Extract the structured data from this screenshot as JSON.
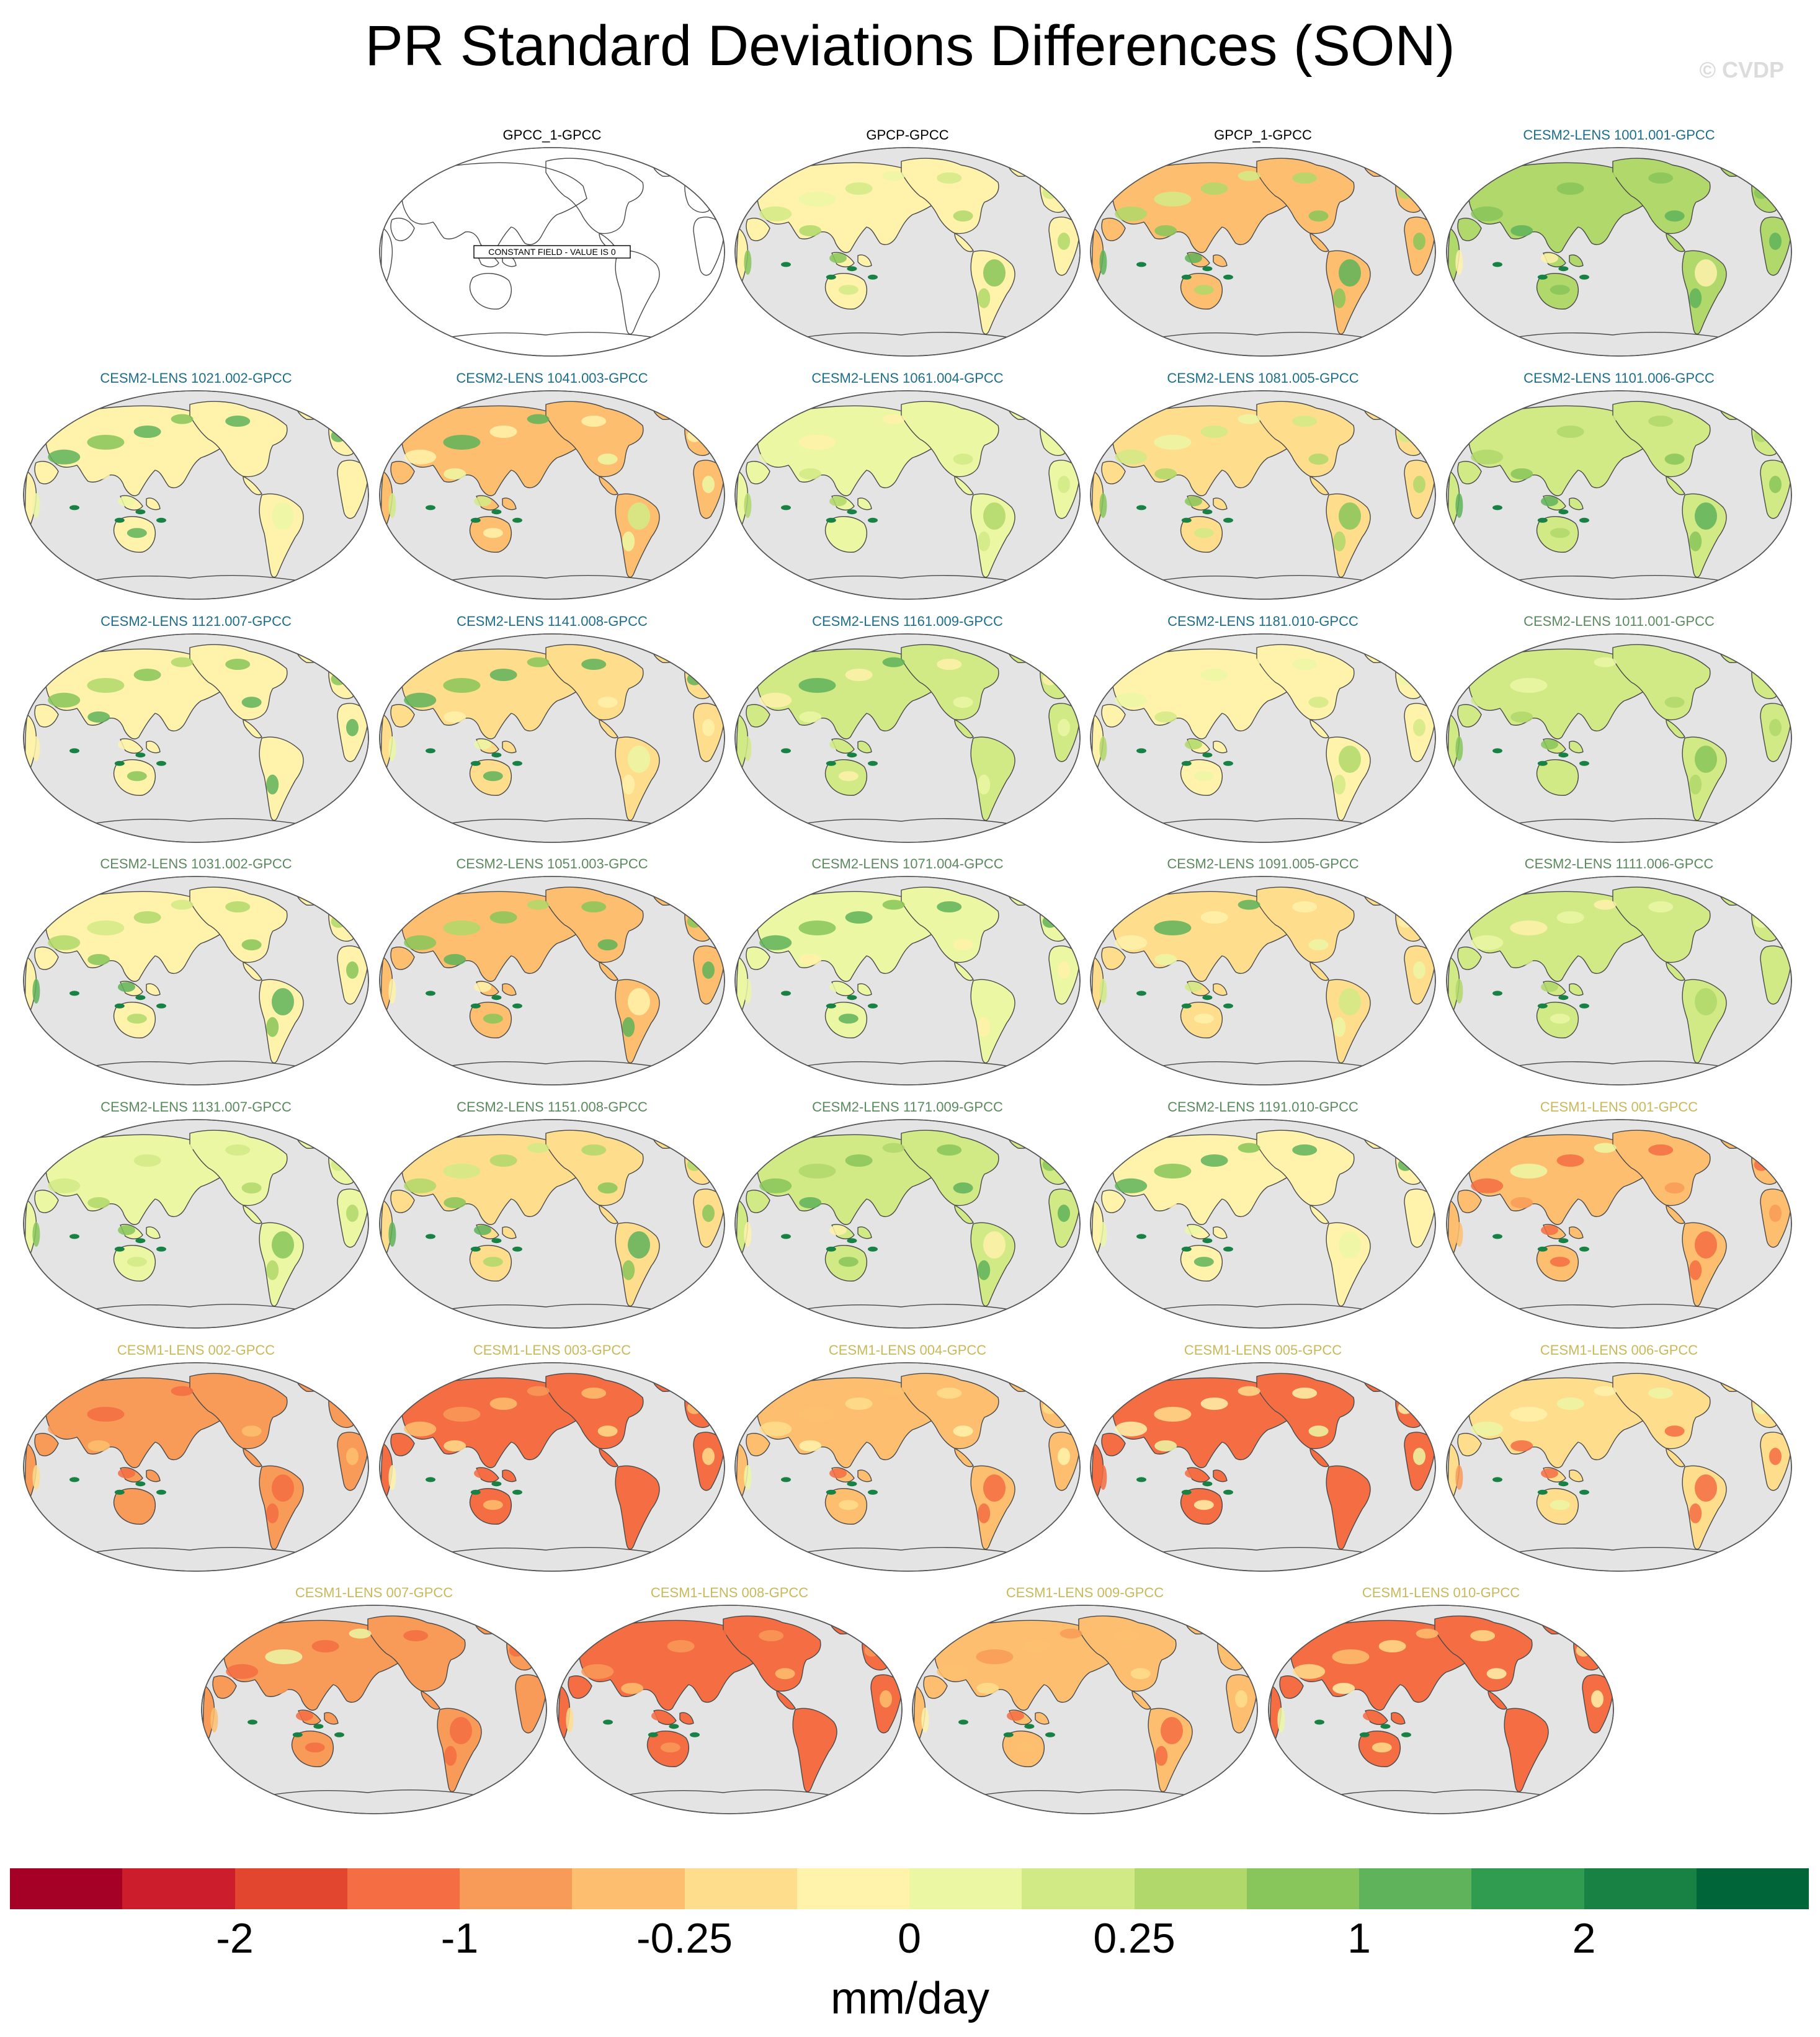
{
  "title": "PR Standard Deviations Differences (SON)",
  "credit": "© CVDP",
  "colors": {
    "ocean": "#e4e4e4",
    "const_fill": "#ffffff",
    "title_obs": "#000000",
    "title_cesm2_a": "#1c6e8c",
    "title_cesm2_b": "#5a8a5e",
    "title_cesm1": "#c9b95a"
  },
  "panels": [
    {
      "label": "GPCC_1-GPCC",
      "group": "obs",
      "constant": true,
      "note": "CONSTANT FIELD - VALUE IS 0"
    },
    {
      "label": "GPCP-GPCC",
      "group": "obs",
      "bias": 0.45
    },
    {
      "label": "GPCP_1-GPCC",
      "group": "obs",
      "bias": 0.45
    },
    {
      "label": "CESM2-LENS 1001.001-GPCC",
      "group": "cesm2_a",
      "bias": 0.1
    },
    {
      "label": "CESM2-LENS 1021.002-GPCC",
      "group": "cesm2_a",
      "bias": 0.2
    },
    {
      "label": "CESM2-LENS 1041.003-GPCC",
      "group": "cesm2_a",
      "bias": 0.2
    },
    {
      "label": "CESM2-LENS 1061.004-GPCC",
      "group": "cesm2_a",
      "bias": 0.2
    },
    {
      "label": "CESM2-LENS 1081.005-GPCC",
      "group": "cesm2_a",
      "bias": 0.2
    },
    {
      "label": "CESM2-LENS 1101.006-GPCC",
      "group": "cesm2_a",
      "bias": 0.2
    },
    {
      "label": "CESM2-LENS 1121.007-GPCC",
      "group": "cesm2_a",
      "bias": 0.2
    },
    {
      "label": "CESM2-LENS 1141.008-GPCC",
      "group": "cesm2_a",
      "bias": 0.1
    },
    {
      "label": "CESM2-LENS 1161.009-GPCC",
      "group": "cesm2_a",
      "bias": 0.1
    },
    {
      "label": "CESM2-LENS 1181.010-GPCC",
      "group": "cesm2_a",
      "bias": 0.1
    },
    {
      "label": "CESM2-LENS 1011.001-GPCC",
      "group": "cesm2_b",
      "bias": 0.2
    },
    {
      "label": "CESM2-LENS 1031.002-GPCC",
      "group": "cesm2_b",
      "bias": 0.2
    },
    {
      "label": "CESM2-LENS 1051.003-GPCC",
      "group": "cesm2_b",
      "bias": 0.2
    },
    {
      "label": "CESM2-LENS 1071.004-GPCC",
      "group": "cesm2_b",
      "bias": 0.2
    },
    {
      "label": "CESM2-LENS 1091.005-GPCC",
      "group": "cesm2_b",
      "bias": 0.2
    },
    {
      "label": "CESM2-LENS 1111.006-GPCC",
      "group": "cesm2_b",
      "bias": 0.2
    },
    {
      "label": "CESM2-LENS 1131.007-GPCC",
      "group": "cesm2_b",
      "bias": 0.1
    },
    {
      "label": "CESM2-LENS 1151.008-GPCC",
      "group": "cesm2_b",
      "bias": 0.1
    },
    {
      "label": "CESM2-LENS 1171.009-GPCC",
      "group": "cesm2_b",
      "bias": 0.1
    },
    {
      "label": "CESM2-LENS 1191.010-GPCC",
      "group": "cesm2_b",
      "bias": 0.1
    },
    {
      "label": "CESM1-LENS 001-GPCC",
      "group": "cesm1",
      "bias": 0.65
    },
    {
      "label": "CESM1-LENS 002-GPCC",
      "group": "cesm1",
      "bias": 0.6
    },
    {
      "label": "CESM1-LENS 003-GPCC",
      "group": "cesm1",
      "bias": 0.6
    },
    {
      "label": "CESM1-LENS 004-GPCC",
      "group": "cesm1",
      "bias": 0.6
    },
    {
      "label": "CESM1-LENS 005-GPCC",
      "group": "cesm1",
      "bias": 0.55
    },
    {
      "label": "CESM1-LENS 006-GPCC",
      "group": "cesm1",
      "bias": 0.6
    },
    {
      "label": "CESM1-LENS 007-GPCC",
      "group": "cesm1",
      "bias": 0.6
    },
    {
      "label": "CESM1-LENS 008-GPCC",
      "group": "cesm1",
      "bias": 0.6
    },
    {
      "label": "CESM1-LENS 009-GPCC",
      "group": "cesm1",
      "bias": 0.6
    },
    {
      "label": "CESM1-LENS 010-GPCC",
      "group": "cesm1",
      "bias": 0.6
    }
  ],
  "colorbar": {
    "colors": [
      "#a50026",
      "#cb1d2b",
      "#e2462f",
      "#f46d43",
      "#f89a58",
      "#fdbf6f",
      "#fedd8c",
      "#fff2aa",
      "#ecf7a4",
      "#d2ea86",
      "#b0d86b",
      "#88c65b",
      "#5fb35a",
      "#2f9c4f",
      "#178244",
      "#00663a"
    ],
    "tick_labels": [
      "-2",
      "-1",
      "-0.25",
      "0",
      "0.25",
      "1",
      "2"
    ],
    "units": "mm/day"
  }
}
